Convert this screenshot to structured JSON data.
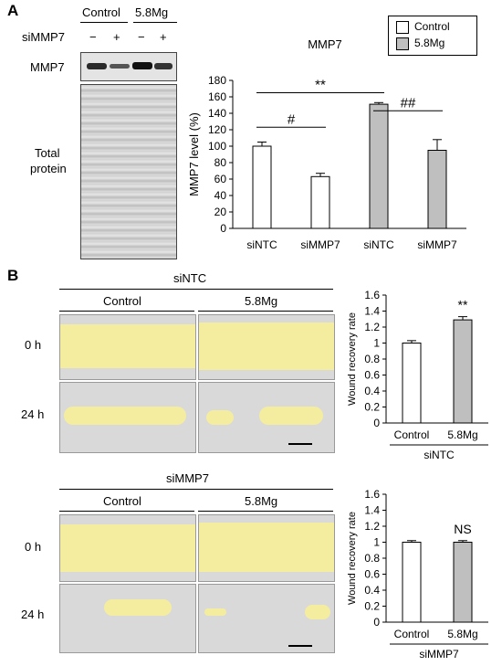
{
  "panelA": {
    "letter": "A",
    "blot": {
      "header_control": "Control",
      "header_mg": "5.8Mg",
      "row_label": "siMMP7",
      "lane_signs": [
        "−",
        "+",
        "−",
        "+"
      ],
      "mmp7_label": "MMP7",
      "total_label_line1": "Total",
      "total_label_line2": "protein"
    },
    "legend": {
      "control": "Control",
      "mg": "5.8Mg"
    },
    "colors": {
      "control_fill": "#ffffff",
      "mg_fill": "#bfbfbf",
      "wound": "#f6ef9a"
    }
  },
  "panelB": {
    "letter": "B",
    "top": {
      "group_title": "siNTC",
      "col_control": "Control",
      "col_mg": "5.8Mg",
      "row_0h": "0 h",
      "row_24h": "24 h"
    },
    "bottom": {
      "group_title": "siMMP7",
      "col_control": "Control",
      "col_mg": "5.8Mg",
      "row_0h": "0 h",
      "row_24h": "24 h"
    }
  },
  "chart_data": [
    {
      "type": "bar",
      "title": "MMP7",
      "ylabel": "MMP7 level (%)",
      "ylim": [
        0,
        180
      ],
      "yticks": [
        0,
        20,
        40,
        60,
        80,
        100,
        120,
        140,
        160,
        180
      ],
      "categories": [
        "siNTC",
        "siMMP7",
        "siNTC",
        "siMMP7"
      ],
      "values": [
        100,
        63,
        151,
        95
      ],
      "errors": [
        5,
        4,
        2,
        13
      ],
      "groups": [
        "Control",
        "Control",
        "5.8Mg",
        "5.8Mg"
      ],
      "annotations": [
        "#",
        "**",
        "##"
      ],
      "legend": [
        "Control",
        "5.8Mg"
      ]
    },
    {
      "type": "bar",
      "ylabel": "Wound recovery rate",
      "ylim": [
        0,
        1.6
      ],
      "yticks": [
        "0",
        "0.2",
        "0.4",
        "0.6",
        "0.8",
        "1",
        "1.2",
        "1.4",
        "1.6"
      ],
      "categories": [
        "Control",
        "5.8Mg"
      ],
      "values": [
        1.0,
        1.29
      ],
      "errors": [
        0.03,
        0.04
      ],
      "annotations": [
        "**"
      ],
      "group_label": "siNTC"
    },
    {
      "type": "bar",
      "ylabel": "Wound recovery rate",
      "ylim": [
        0,
        1.6
      ],
      "yticks": [
        "0",
        "0.2",
        "0.4",
        "0.6",
        "0.8",
        "1",
        "1.2",
        "1.4",
        "1.6"
      ],
      "categories": [
        "Control",
        "5.8Mg"
      ],
      "values": [
        1.0,
        1.0
      ],
      "errors": [
        0.02,
        0.02
      ],
      "annotations": [
        "NS"
      ],
      "group_label": "siMMP7"
    }
  ]
}
